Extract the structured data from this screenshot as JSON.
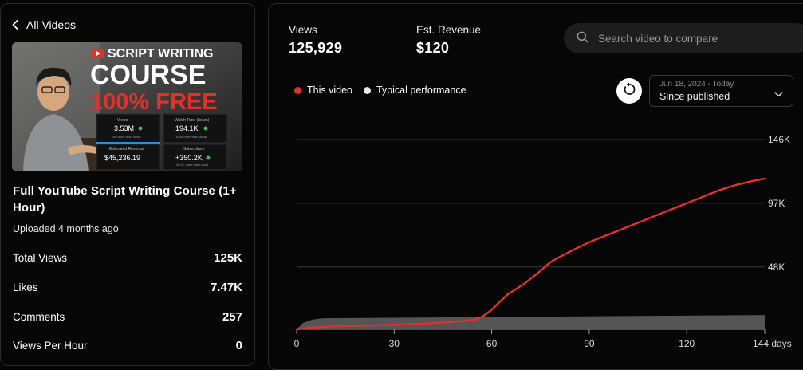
{
  "left": {
    "back_label": "All Videos",
    "thumbnail": {
      "line1": "SCRIPT WRITING",
      "line2": "COURSE",
      "line3": "100% FREE",
      "cards": [
        {
          "label": "Views",
          "value": "3.53M",
          "sub": "3M more than usual"
        },
        {
          "label": "Watch Time (hours)",
          "value": "194.1K",
          "sub": "104K more than usual"
        },
        {
          "label": "Estimated Revenue",
          "value": "$45,236.19",
          "sub": ""
        },
        {
          "label": "Subscribers",
          "value": "+350.2K",
          "sub": "40.1K more than usual"
        }
      ]
    },
    "video_title": "Full YouTube Script Writing Course (1+ Hour)",
    "uploaded": "Uploaded 4 months ago",
    "stats": [
      {
        "label": "Total Views",
        "value": "125K"
      },
      {
        "label": "Likes",
        "value": "7.47K"
      },
      {
        "label": "Comments",
        "value": "257"
      },
      {
        "label": "Views Per Hour",
        "value": "0"
      }
    ]
  },
  "right": {
    "kpis": [
      {
        "label": "Views",
        "value": "125,929"
      },
      {
        "label": "Est. Revenue",
        "value": "$120"
      }
    ],
    "search": {
      "placeholder": "Search video to compare"
    },
    "legend": [
      {
        "label": "This video",
        "color": "#e0322b"
      },
      {
        "label": "Typical performance",
        "color": "#e8e8e8"
      }
    ],
    "date_range": {
      "range": "Jun 18, 2024 - Today",
      "selected": "Since published"
    }
  },
  "chart_data": {
    "type": "line",
    "x_unit": "days",
    "xlim": [
      0,
      144
    ],
    "ylim": [
      0,
      146000
    ],
    "x_ticks": [
      0,
      30,
      60,
      90,
      120,
      144
    ],
    "x_tick_labels": [
      "0",
      "30",
      "60",
      "90",
      "120",
      "144 days"
    ],
    "y_ticks": [
      48000,
      97000,
      146000
    ],
    "y_tick_labels": [
      "48K",
      "97K",
      "146K"
    ],
    "grid": true,
    "series": [
      {
        "name": "This video",
        "color": "#e0322b",
        "x": [
          0,
          5,
          10,
          20,
          30,
          40,
          50,
          55,
          57,
          60,
          62,
          65,
          70,
          75,
          78,
          80,
          85,
          90,
          95,
          100,
          105,
          110,
          115,
          120,
          125,
          130,
          135,
          140,
          144
        ],
        "y": [
          0,
          1500,
          2200,
          2800,
          3500,
          4500,
          6000,
          7500,
          9500,
          15000,
          20000,
          27000,
          35000,
          45000,
          51500,
          54500,
          61000,
          67000,
          72000,
          77000,
          82000,
          87000,
          92000,
          97000,
          102000,
          107000,
          111000,
          114000,
          116000
        ]
      },
      {
        "name": "Typical performance",
        "color": "#555555",
        "style": "band",
        "x": [
          0,
          2,
          5,
          8,
          144
        ],
        "y_low": [
          0,
          0,
          0,
          0,
          0
        ],
        "y_high": [
          0,
          5000,
          7500,
          8500,
          11000
        ]
      }
    ]
  }
}
